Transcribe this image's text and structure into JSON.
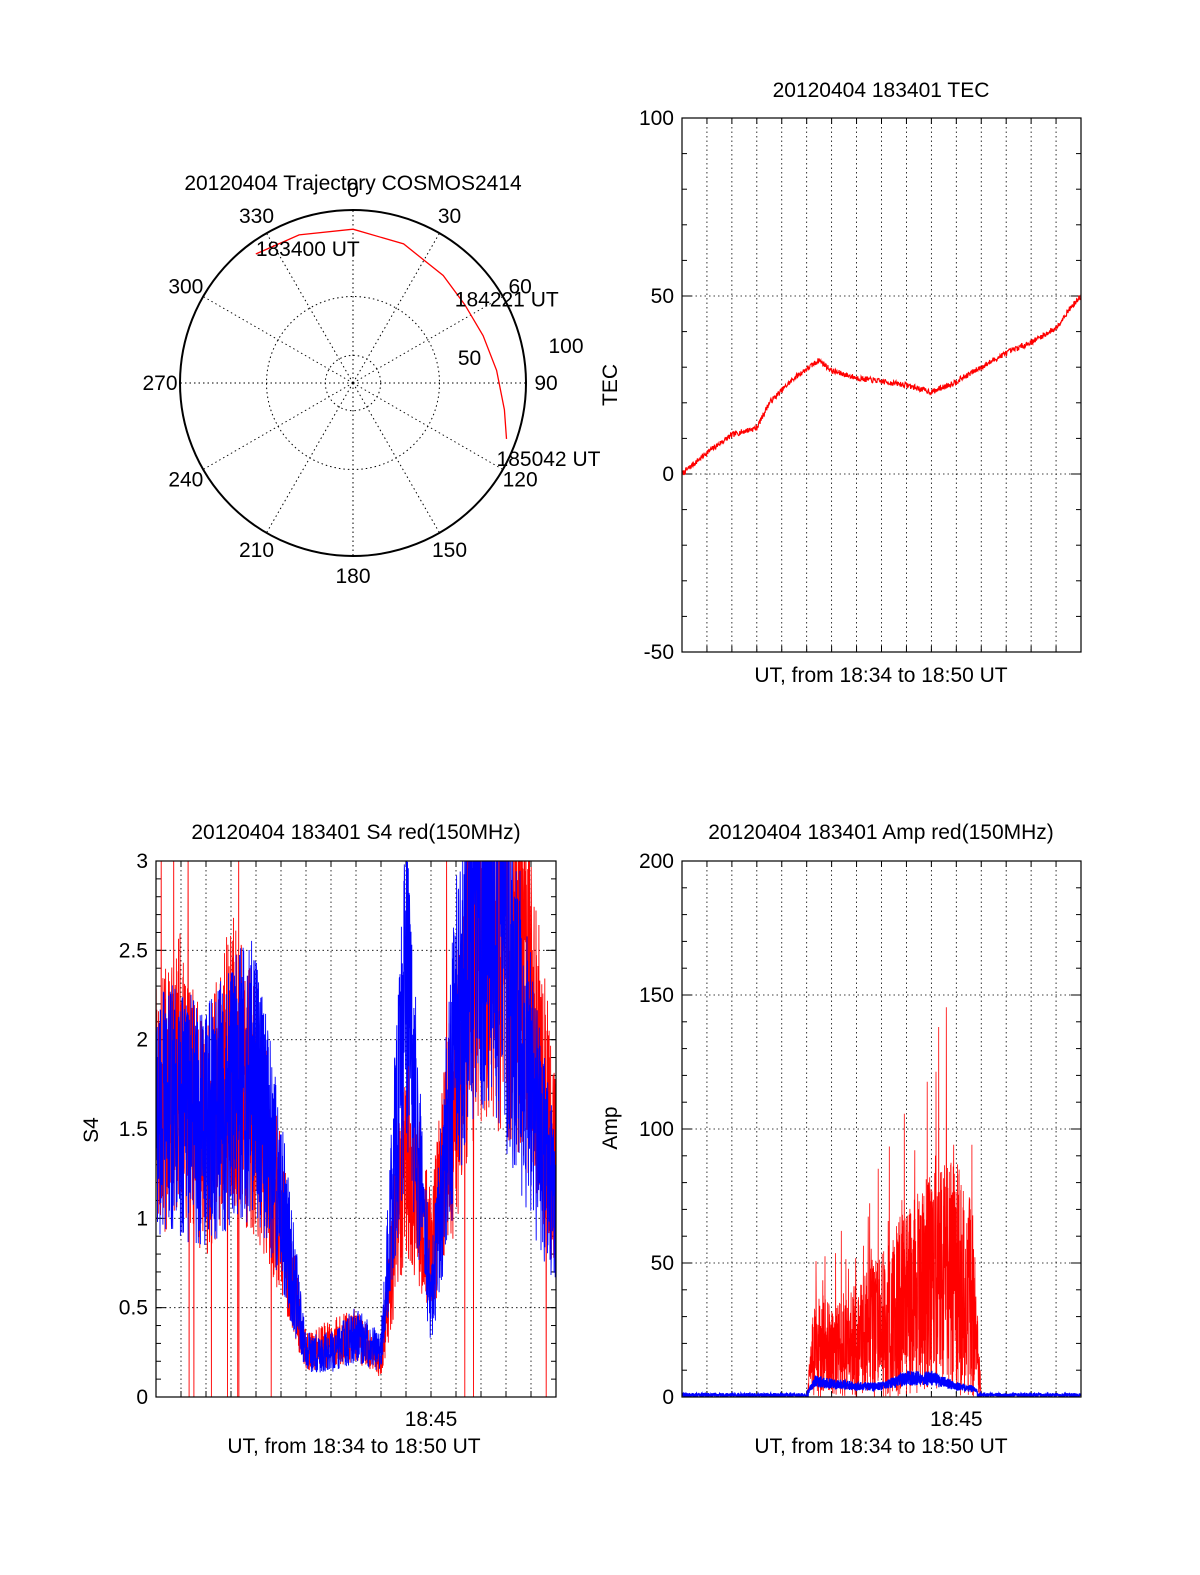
{
  "chart_data": [
    {
      "type": "polar-trajectory",
      "title": "20120404 Trajectory COSMOS2414",
      "azimuth_labels": [
        "0",
        "30",
        "60",
        "90",
        "120",
        "150",
        "180",
        "210",
        "240",
        "270",
        "300",
        "330"
      ],
      "elevation_ring_labels": [
        "50",
        "100"
      ],
      "trajectory": {
        "color": "#ff0000",
        "points": [
          {
            "az": 323,
            "el": 6
          },
          {
            "az": 340,
            "el": 8
          },
          {
            "az": 0,
            "el": 10
          },
          {
            "az": 20,
            "el": 13
          },
          {
            "az": 40,
            "el": 17
          },
          {
            "az": 55,
            "el": 19
          },
          {
            "az": 70,
            "el": 18
          },
          {
            "az": 85,
            "el": 15
          },
          {
            "az": 100,
            "el": 10
          },
          {
            "az": 110,
            "el": 5
          }
        ],
        "markers": [
          {
            "label": "183400 UT",
            "az": 323,
            "el": 6
          },
          {
            "label": "184221 UT",
            "az": 55,
            "el": 19
          },
          {
            "label": "185042 UT",
            "az": 110,
            "el": 5
          }
        ]
      }
    },
    {
      "type": "line",
      "title": "20120404 183401 TEC",
      "xlabel": "UT, from 18:34 to 18:50 UT",
      "ylabel": "TEC",
      "ylim": [
        -50,
        100
      ],
      "yticks": [
        "-50",
        "0",
        "50",
        "100"
      ],
      "xlim": [
        "18:34",
        "18:50"
      ],
      "grid": true,
      "series": [
        {
          "color": "#ff0000",
          "x": [
            "18:34:00",
            "18:35:00",
            "18:36:00",
            "18:37:00",
            "18:37:30",
            "18:38:30",
            "18:39:30",
            "18:40:00",
            "18:41:00",
            "18:42:00",
            "18:43:00",
            "18:44:00",
            "18:45:00",
            "18:46:00",
            "18:47:00",
            "18:48:00",
            "18:49:00",
            "18:49:30",
            "18:50:00"
          ],
          "values": [
            0,
            6,
            11,
            13,
            20,
            27,
            32,
            29,
            27,
            26,
            25,
            23,
            26,
            30,
            34,
            37,
            41,
            46,
            50
          ]
        }
      ]
    },
    {
      "type": "line",
      "title": "20120404 183401 S4 red(150MHz)",
      "xlabel": "UT, from 18:34 to 18:50 UT",
      "ylabel": "S4",
      "ylim": [
        0,
        3
      ],
      "yticks": [
        "0",
        "0.5",
        "1",
        "1.5",
        "2",
        "2.5",
        "3"
      ],
      "xtick_labels": [
        {
          "label": "18:45",
          "t": "18:45"
        }
      ],
      "xlim": [
        "18:34",
        "18:50"
      ],
      "grid": true,
      "series": [
        {
          "color": "#ff0000",
          "x": [
            "18:34:00",
            "18:35:00",
            "18:36:00",
            "18:37:00",
            "18:38:00",
            "18:39:00",
            "18:40:00",
            "18:41:00",
            "18:42:00",
            "18:43:00",
            "18:44:00",
            "18:45:00",
            "18:46:00",
            "18:47:00",
            "18:48:00",
            "18:49:00",
            "18:50:00"
          ],
          "values": [
            1.6,
            1.8,
            1.4,
            1.9,
            1.6,
            1.0,
            0.25,
            0.3,
            0.35,
            0.2,
            1.4,
            0.8,
            1.7,
            2.8,
            2.6,
            2.2,
            1.2
          ]
        },
        {
          "color": "#0000ff",
          "x": [
            "18:34:00",
            "18:35:00",
            "18:36:00",
            "18:37:00",
            "18:38:00",
            "18:39:00",
            "18:40:00",
            "18:41:00",
            "18:42:00",
            "18:43:00",
            "18:44:00",
            "18:45:00",
            "18:46:00",
            "18:47:00",
            "18:48:00",
            "18:49:00",
            "18:50:00"
          ],
          "values": [
            1.6,
            1.6,
            1.5,
            1.7,
            1.8,
            1.1,
            0.25,
            0.25,
            0.35,
            0.25,
            2.2,
            0.5,
            2.0,
            2.9,
            2.5,
            1.7,
            1.0
          ]
        }
      ]
    },
    {
      "type": "line",
      "title": "20120404 183401 Amp red(150MHz)",
      "xlabel": "UT, from 18:34 to 18:50 UT",
      "ylabel": "Amp",
      "ylim": [
        0,
        200
      ],
      "yticks": [
        "0",
        "50",
        "100",
        "150",
        "200"
      ],
      "xtick_labels": [
        {
          "label": "18:45",
          "t": "18:45"
        }
      ],
      "xlim": [
        "18:34",
        "18:50"
      ],
      "grid": true,
      "series": [
        {
          "color": "#ff0000",
          "x": [
            "18:34:00",
            "18:39:00",
            "18:39:20",
            "18:40:00",
            "18:41:00",
            "18:42:00",
            "18:43:00",
            "18:44:00",
            "18:45:00",
            "18:45:40",
            "18:46:00",
            "18:50:00"
          ],
          "values": [
            0,
            0,
            35,
            30,
            35,
            45,
            60,
            70,
            75,
            60,
            0,
            0
          ]
        },
        {
          "color": "#0000ff",
          "x": [
            "18:34:00",
            "18:39:00",
            "18:39:20",
            "18:40:00",
            "18:41:00",
            "18:42:00",
            "18:43:00",
            "18:44:00",
            "18:45:00",
            "18:45:40",
            "18:46:00",
            "18:50:00"
          ],
          "values": [
            1,
            1,
            6,
            5,
            4,
            4,
            7,
            7,
            4,
            3,
            1,
            1
          ]
        }
      ]
    }
  ]
}
